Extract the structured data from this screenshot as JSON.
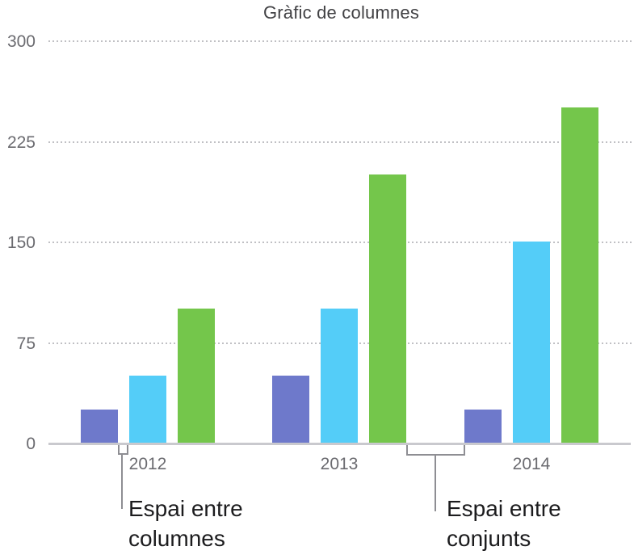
{
  "chart_data": {
    "type": "bar",
    "title": "Gràfic de columnes",
    "categories": [
      "2012",
      "2013",
      "2014"
    ],
    "series": [
      {
        "name": "series-1",
        "color": "#6e79cb",
        "values": [
          25,
          50,
          25
        ]
      },
      {
        "name": "series-2",
        "color": "#54cdf8",
        "values": [
          50,
          100,
          150
        ]
      },
      {
        "name": "series-3",
        "color": "#74c64b",
        "values": [
          100,
          200,
          250
        ]
      }
    ],
    "xlabel": "",
    "ylabel": "",
    "ylim": [
      0,
      300
    ],
    "yticks": [
      0,
      75,
      150,
      225,
      300
    ],
    "grid": "horizontal-dotted",
    "legend": "none"
  },
  "annotations": [
    {
      "lines": [
        "Espai entre",
        "columnes"
      ]
    },
    {
      "lines": [
        "Espai entre",
        "conjunts"
      ]
    }
  ],
  "colors": {
    "background": "#ffffff",
    "title_text": "#414144",
    "tick_text": "#6b6b70",
    "axis_line": "#c9c9ce",
    "gridline": "#c0c0c4",
    "annotation_text": "#1c1c1e",
    "bracket_line": "#8e8e93",
    "bar_purple": "#6e79cb",
    "bar_blue": "#54cdf8",
    "bar_green": "#74c64b"
  }
}
